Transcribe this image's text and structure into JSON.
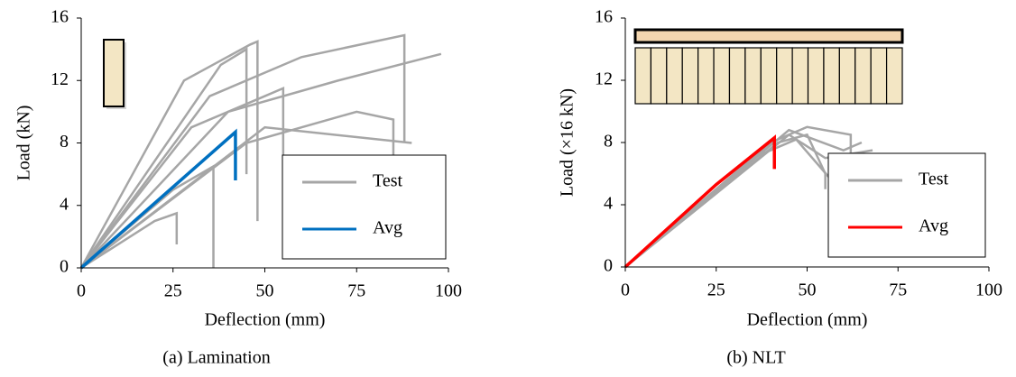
{
  "chart_data": [
    {
      "type": "line",
      "caption": "(a) Lamination",
      "xlabel": "Deflection (mm)",
      "ylabel": "Load (kN)",
      "xlim": [
        0,
        100
      ],
      "ylim": [
        0,
        16
      ],
      "xticks": [
        0,
        25,
        50,
        75,
        100
      ],
      "yticks": [
        0,
        4,
        8,
        12,
        16
      ],
      "series": [
        {
          "name": "Test",
          "color": "#a6a6a6",
          "curves": [
            {
              "x": [
                0,
                28,
                46,
                48,
                48
              ],
              "values": [
                0,
                12,
                14.3,
                14.5,
                3
              ]
            },
            {
              "x": [
                0,
                35,
                60,
                88,
                88
              ],
              "values": [
                0,
                11,
                13.5,
                14.9,
                8
              ]
            },
            {
              "x": [
                0,
                40,
                70,
                98
              ],
              "values": [
                0,
                10,
                12,
                13.7
              ]
            },
            {
              "x": [
                0,
                30,
                50,
                55,
                55
              ],
              "values": [
                0,
                9,
                11,
                11.5,
                1
              ]
            },
            {
              "x": [
                0,
                25,
                36,
                36
              ],
              "values": [
                0,
                5,
                6.5,
                0
              ]
            },
            {
              "x": [
                0,
                20,
                26,
                26
              ],
              "values": [
                0,
                3,
                3.5,
                1.5
              ]
            },
            {
              "x": [
                0,
                45,
                75,
                85,
                85
              ],
              "values": [
                0,
                8,
                10,
                9.5,
                7
              ]
            },
            {
              "x": [
                0,
                50,
                90
              ],
              "values": [
                0,
                9,
                8
              ]
            },
            {
              "x": [
                0,
                38,
                45,
                45
              ],
              "values": [
                0,
                13,
                14,
                6
              ]
            }
          ]
        },
        {
          "name": "Avg",
          "color": "#0070c0",
          "x": [
            0,
            42,
            42
          ],
          "values": [
            0,
            8.7,
            5.6
          ]
        }
      ]
    },
    {
      "type": "line",
      "caption": "(b) NLT",
      "xlabel": "Deflection (mm)",
      "ylabel": "Load (×16 kN)",
      "xlim": [
        0,
        100
      ],
      "ylim": [
        0,
        16
      ],
      "xticks": [
        0,
        25,
        50,
        75,
        100
      ],
      "yticks": [
        0,
        4,
        8,
        12,
        16
      ],
      "series": [
        {
          "name": "Test",
          "color": "#a6a6a6",
          "curves": [
            {
              "x": [
                0,
                40,
                50,
                62,
                62
              ],
              "values": [
                0,
                8,
                9,
                8.5,
                6
              ]
            },
            {
              "x": [
                0,
                45,
                55,
                68
              ],
              "values": [
                0,
                8.5,
                7,
                7.5
              ]
            },
            {
              "x": [
                0,
                42,
                50,
                55,
                55
              ],
              "values": [
                0,
                8,
                8.5,
                6,
                5
              ]
            },
            {
              "x": [
                0,
                45,
                60,
                65
              ],
              "values": [
                0,
                8.8,
                7.5,
                8
              ]
            },
            {
              "x": [
                0,
                35,
                47,
                57
              ],
              "values": [
                0,
                7,
                8.2,
                5.5
              ]
            }
          ]
        },
        {
          "name": "Avg",
          "color": "#ff0000",
          "x": [
            0,
            25,
            41,
            41
          ],
          "values": [
            0,
            5.3,
            8.3,
            6.3
          ]
        }
      ]
    }
  ]
}
